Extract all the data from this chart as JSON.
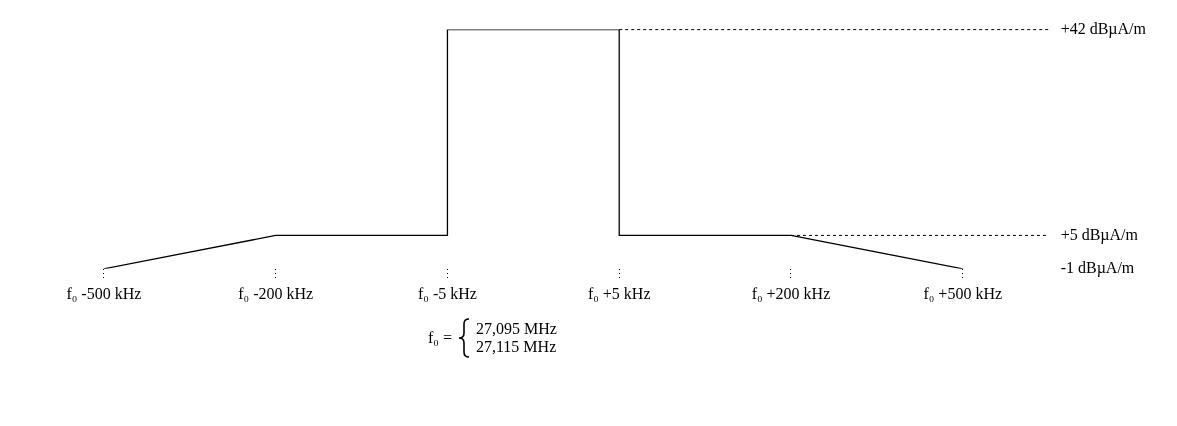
{
  "chart_data": {
    "type": "line",
    "categories": [
      "f₀ -500 kHz",
      "f₀ -200 kHz",
      "f₀ -5 kHz",
      "f₀ +5 kHz",
      "f₀ +200 kHz",
      "f₀ +500 kHz"
    ],
    "series": [
      {
        "color": "#000000",
        "x": [
          "f₀ -500 kHz",
          "f₀ -200 kHz",
          "f₀ -5 kHz",
          "f₀ -5 kHz",
          "f₀ +5 kHz",
          "f₀ +5 kHz",
          "f₀ +200 kHz",
          "f₀ +500 kHz"
        ],
        "values": [
          -1,
          5,
          5,
          42,
          42,
          5,
          5,
          -1
        ]
      }
    ],
    "ylim": [
      -1,
      42
    ],
    "yticks": [
      {
        "value": -1,
        "label": "-1 dBµA/m"
      },
      {
        "value": 5,
        "label": "+5 dBµA/m"
      },
      {
        "value": 42,
        "label": "+42 dBµA/m"
      }
    ],
    "ref_lines": [
      {
        "axis": "y",
        "value": 42,
        "line_style": "dashed"
      },
      {
        "axis": "y",
        "value": 5,
        "line_style": "dashed"
      }
    ],
    "annotations": [
      "f₀ =",
      "27,095 MHz",
      "27,115 MHz"
    ],
    "marker": "none",
    "line_style": "solid"
  }
}
